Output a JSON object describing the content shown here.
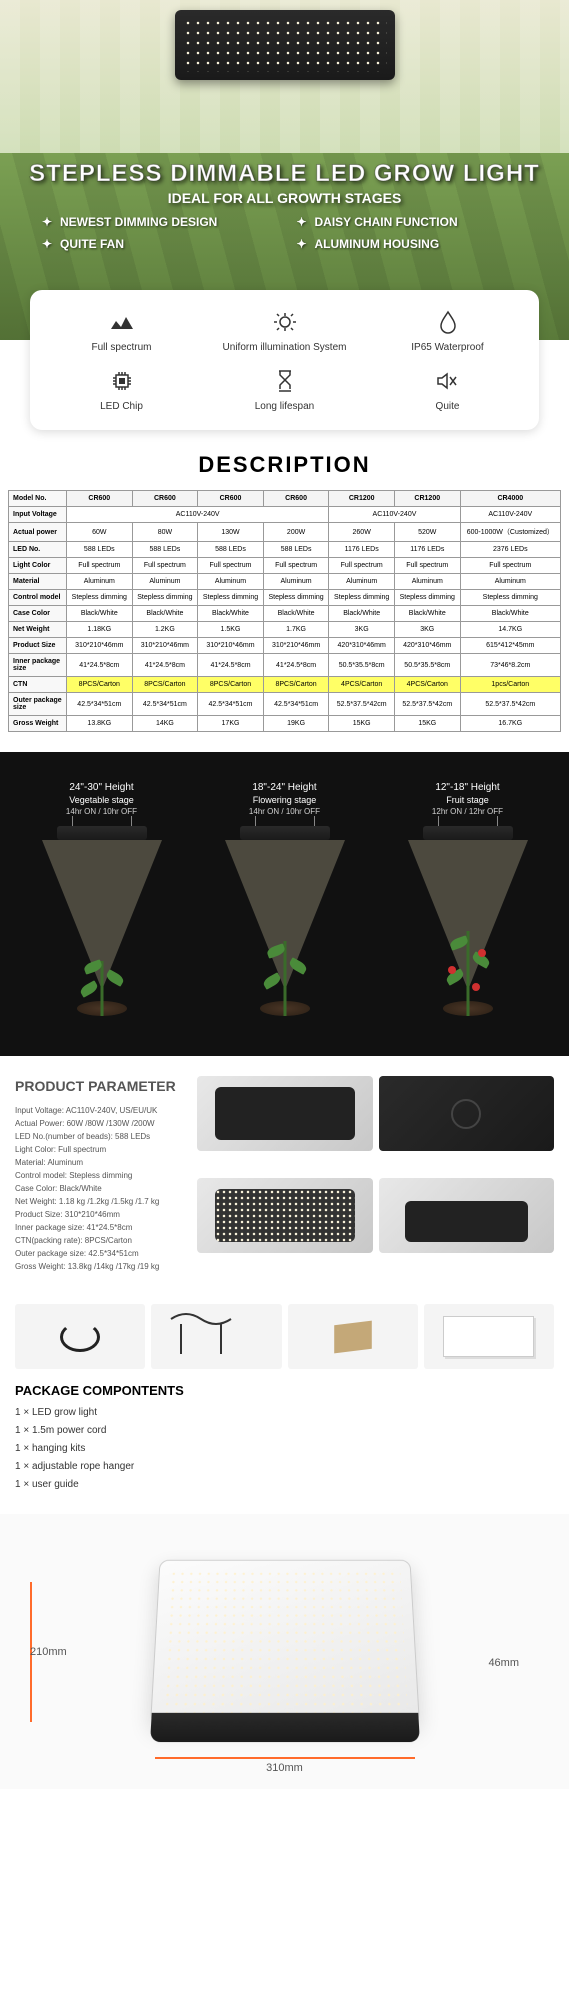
{
  "hero": {
    "title": "STEPLESS DIMMABLE LED GROW LIGHT",
    "subtitle": "IDEAL FOR ALL GROWTH STAGES",
    "features": [
      "NEWEST DIMMING DESIGN",
      "DAISY CHAIN FUNCTION",
      "QUITE FAN",
      "ALUMINUM HOUSING"
    ]
  },
  "spec_card": {
    "row1": [
      "Full spectrum",
      "Uniform illumination System",
      "IP65 Waterproof"
    ],
    "row2": [
      "LED Chip",
      "Long lifespan",
      "Quite"
    ]
  },
  "description_heading": "DESCRIPTION",
  "table": {
    "header": [
      "Model No.",
      "CR600",
      "CR600",
      "CR600",
      "CR600",
      "CR1200",
      "CR1200",
      "CR4000"
    ],
    "rows": [
      {
        "label": "Input Voltage",
        "span": [
          {
            "c": 4,
            "v": "AC110V-240V"
          },
          {
            "c": 2,
            "v": "AC110V-240V"
          },
          {
            "c": 1,
            "v": "AC110V-240V"
          }
        ]
      },
      {
        "label": "Actual power",
        "cells": [
          "60W",
          "80W",
          "130W",
          "200W",
          "260W",
          "520W",
          "600-1000W（Customized）"
        ]
      },
      {
        "label": "LED No.",
        "cells": [
          "588 LEDs",
          "588 LEDs",
          "588 LEDs",
          "588 LEDs",
          "1176 LEDs",
          "1176 LEDs",
          "2376 LEDs"
        ]
      },
      {
        "label": "Light Color",
        "cells": [
          "Full spectrum",
          "Full spectrum",
          "Full spectrum",
          "Full spectrum",
          "Full spectrum",
          "Full spectrum",
          "Full spectrum"
        ]
      },
      {
        "label": "Material",
        "cells": [
          "Aluminum",
          "Aluminum",
          "Aluminum",
          "Aluminum",
          "Aluminum",
          "Aluminum",
          "Aluminum"
        ]
      },
      {
        "label": "Control model",
        "cells": [
          "Stepless dimming",
          "Stepless dimming",
          "Stepless dimming",
          "Stepless dimming",
          "Stepless dimming",
          "Stepless dimming",
          "Stepless dimming"
        ]
      },
      {
        "label": "Case Color",
        "cells": [
          "Black/White",
          "Black/White",
          "Black/White",
          "Black/White",
          "Black/White",
          "Black/White",
          "Black/White"
        ]
      },
      {
        "label": "Net Weight",
        "cells": [
          "1.18KG",
          "1.2KG",
          "1.5KG",
          "1.7KG",
          "3KG",
          "3KG",
          "14.7KG"
        ]
      },
      {
        "label": "Product Size",
        "cells": [
          "310*210*46mm",
          "310*210*46mm",
          "310*210*46mm",
          "310*210*46mm",
          "420*310*46mm",
          "420*310*46mm",
          "615*412*45mm"
        ]
      },
      {
        "label": "Inner package size",
        "cells": [
          "41*24.5*8cm",
          "41*24.5*8cm",
          "41*24.5*8cm",
          "41*24.5*8cm",
          "50.5*35.5*8cm",
          "50.5*35.5*8cm",
          "73*46*8.2cm"
        ]
      },
      {
        "label": "CTN",
        "hl": true,
        "cells": [
          "8PCS/Carton",
          "8PCS/Carton",
          "8PCS/Carton",
          "8PCS/Carton",
          "4PCS/Carton",
          "4PCS/Carton",
          "1pcs/Carton"
        ]
      },
      {
        "label": "Outer package size",
        "cells": [
          "42.5*34*51cm",
          "42.5*34*51cm",
          "42.5*34*51cm",
          "42.5*34*51cm",
          "52.5*37.5*42cm",
          "52.5*37.5*42cm",
          "52.5*37.5*42cm"
        ]
      },
      {
        "label": "Gross Weight",
        "cells": [
          "13.8KG",
          "14KG",
          "17KG",
          "19KG",
          "15KG",
          "15KG",
          "16.7KG"
        ]
      }
    ]
  },
  "stages": [
    {
      "height": "24\"-30\" Height",
      "name": "Vegetable stage",
      "time": "14hr ON / 10hr OFF",
      "plant_h": 55,
      "fruit": false
    },
    {
      "height": "18\"-24\" Height",
      "name": "Flowering stage",
      "time": "14hr ON / 10hr OFF",
      "plant_h": 75,
      "fruit": false
    },
    {
      "height": "12\"-18\" Height",
      "name": "Fruit stage",
      "time": "12hr ON / 12hr OFF",
      "plant_h": 85,
      "fruit": true
    }
  ],
  "param": {
    "title": "PRODUCT PARAMETER",
    "lines": [
      "Input Voltage: AC110V-240V, US/EU/UK",
      "Actual Power: 60W /80W /130W /200W",
      "LED No.(number of beads): 588 LEDs",
      "Light Color: Full spectrum",
      "Material: Aluminum",
      "Control model: Stepless dimming",
      "Case Color: Black/White",
      "Net Weight: 1.18 kg /1.2kg /1.5kg /1.7 kg",
      "Product Size: 310*210*46mm",
      "Inner package size: 41*24.5*8cm",
      "CTN(packing rate): 8PCS/Carton",
      "Outer package size: 42.5*34*51cm",
      "Gross Weight: 13.8kg /14kg /17kg /19 kg"
    ]
  },
  "package": {
    "title": "PACKAGE COMPONTENTS",
    "items": [
      "1 × LED grow light",
      "1 × 1.5m power cord",
      "1 × hanging kits",
      "1 × adjustable rope hanger",
      "1 × user guide"
    ]
  },
  "dims": {
    "w": "310mm",
    "h": "210mm",
    "d": "46mm"
  },
  "colors": {
    "highlight": "#ffff66",
    "arrow": "#ff6b2b",
    "plant": "#4a8b3a",
    "fruit": "#d03030"
  }
}
